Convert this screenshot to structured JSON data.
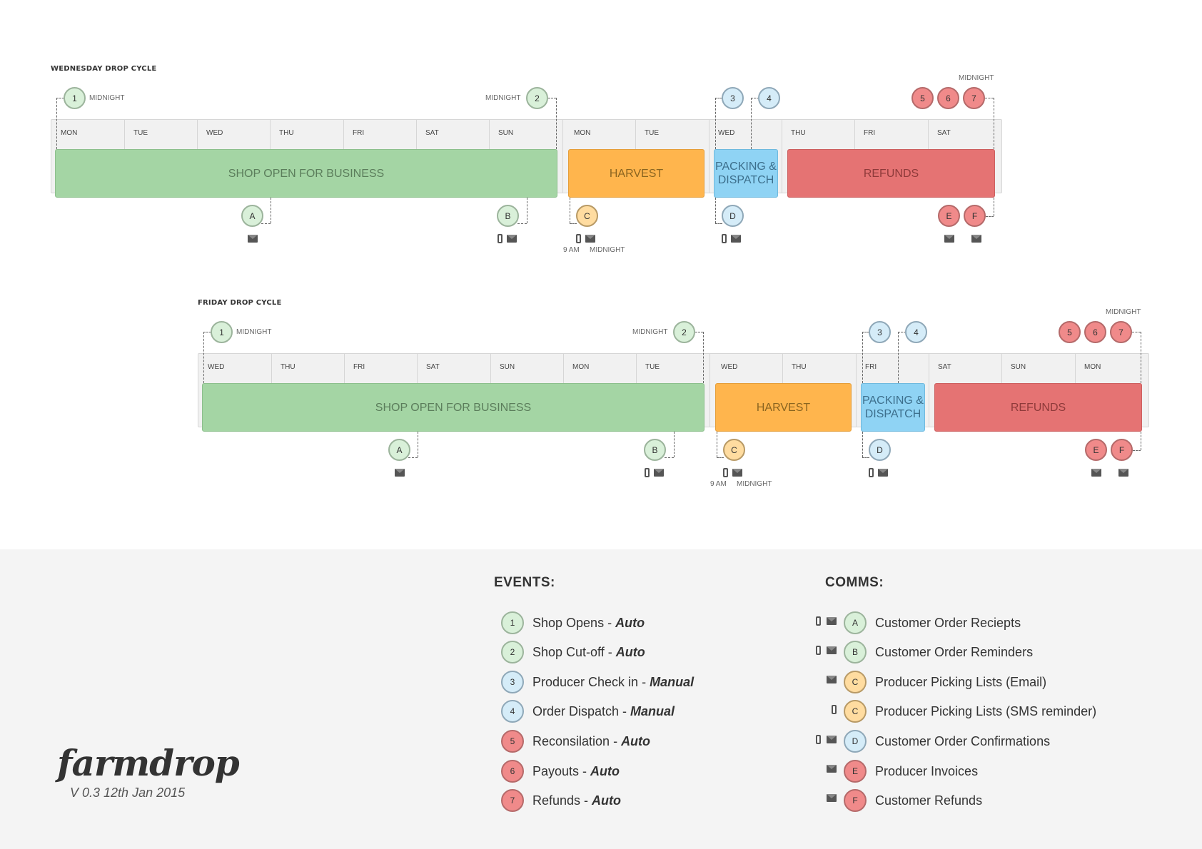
{
  "cycles": [
    {
      "title": "WEDNESDAY DROP CYCLE",
      "days": [
        "MON",
        "TUE",
        "WED",
        "THU",
        "FRI",
        "SAT",
        "SUN",
        "MON",
        "TUE",
        "WED",
        "THU",
        "FRI",
        "SAT"
      ],
      "phases": {
        "shop": "SHOP OPEN FOR BUSINESS",
        "harvest": "HARVEST",
        "packing_1": "PACKING &",
        "packing_2": "DISPATCH",
        "refunds": "REFUNDS"
      },
      "labels": {
        "midnight": "MIDNIGHT",
        "nine_am": "9 AM"
      }
    },
    {
      "title": "FRIDAY DROP CYCLE",
      "days": [
        "WED",
        "THU",
        "FRI",
        "SAT",
        "SUN",
        "MON",
        "TUE",
        "WED",
        "THU",
        "FRI",
        "SAT",
        "SUN",
        "MON"
      ],
      "phases": {
        "shop": "SHOP OPEN FOR BUSINESS",
        "harvest": "HARVEST",
        "packing_1": "PACKING &",
        "packing_2": "DISPATCH",
        "refunds": "REFUNDS"
      },
      "labels": {
        "midnight": "MIDNIGHT",
        "nine_am": "9 AM"
      }
    }
  ],
  "markers": {
    "e1": "1",
    "e2": "2",
    "e3": "3",
    "e4": "4",
    "e5": "5",
    "e6": "6",
    "e7": "7",
    "a": "A",
    "b": "B",
    "c": "C",
    "d": "D",
    "e": "E",
    "f": "F"
  },
  "events": {
    "title": "EVENTS:",
    "items": [
      {
        "num": "1",
        "name": "Shop Opens - ",
        "mode": "Auto"
      },
      {
        "num": "2",
        "name": "Shop Cut-off - ",
        "mode": "Auto"
      },
      {
        "num": "3",
        "name": "Producer Check in - ",
        "mode": "Manual"
      },
      {
        "num": "4",
        "name": "Order Dispatch - ",
        "mode": "Manual"
      },
      {
        "num": "5",
        "name": "Reconsilation - ",
        "mode": "Auto"
      },
      {
        "num": "6",
        "name": "Payouts - ",
        "mode": "Auto"
      },
      {
        "num": "7",
        "name": "Refunds - ",
        "mode": "Auto"
      }
    ]
  },
  "comms": {
    "title": "COMMS:",
    "items": [
      {
        "letter": "A",
        "name": "Customer Order Reciepts"
      },
      {
        "letter": "B",
        "name": "Customer Order Reminders"
      },
      {
        "letter": "C",
        "name": "Producer Picking Lists (Email)"
      },
      {
        "letter": "C",
        "name": "Producer Picking Lists (SMS reminder)"
      },
      {
        "letter": "D",
        "name": "Customer Order Confirmations"
      },
      {
        "letter": "E",
        "name": "Producer Invoices"
      },
      {
        "letter": "F",
        "name": "Customer Refunds"
      }
    ]
  },
  "brand": {
    "logo": "farmdrop",
    "version": "V 0.3 12th Jan 2015"
  },
  "colors": {
    "shop": "#a4d5a4",
    "harvest": "#ffb54d",
    "packing": "#8fd3f4",
    "refunds": "#e57373",
    "footer_bg": "#f4f4f4"
  }
}
